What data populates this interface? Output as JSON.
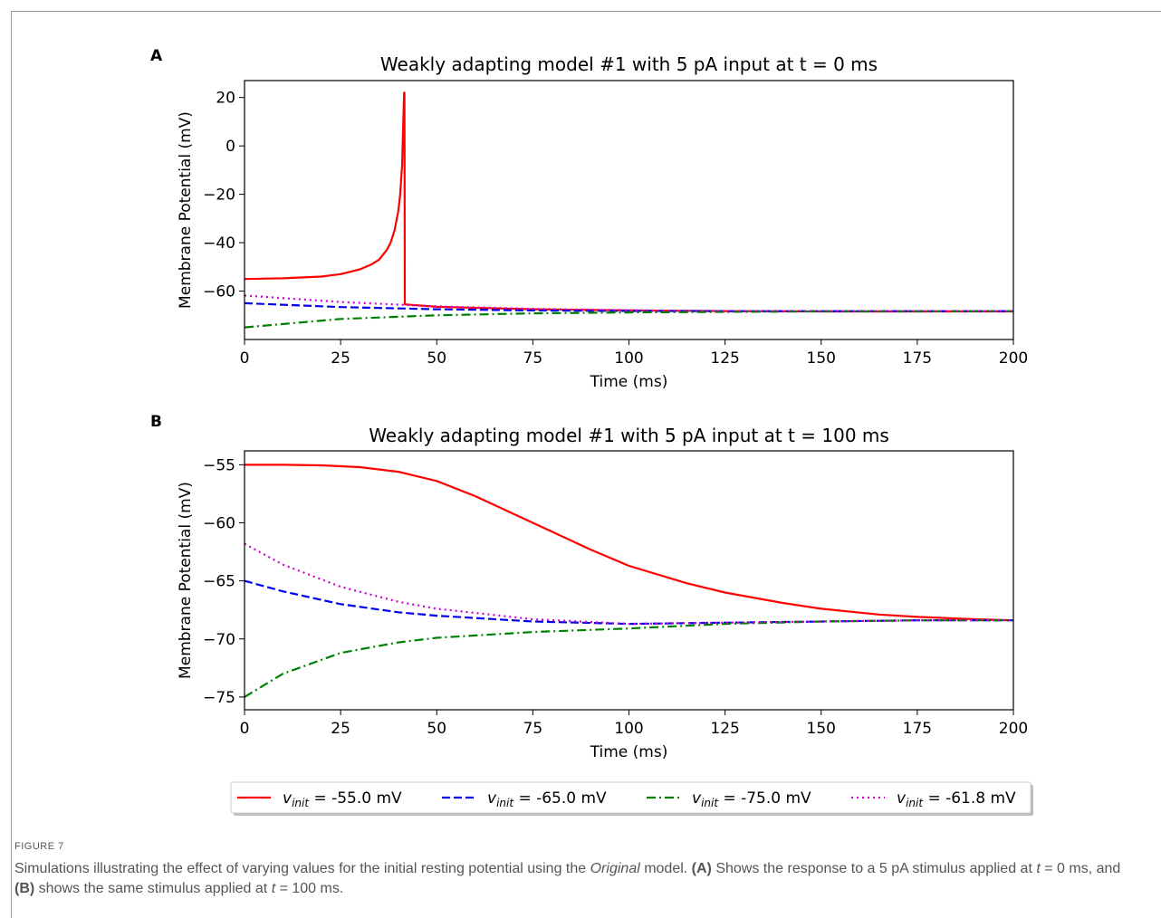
{
  "chart_data": [
    {
      "type": "line",
      "panel_label": "A",
      "title": "Weakly adapting model #1 with 5 pA input at t = 0 ms",
      "xlabel": "Time (ms)",
      "ylabel": "Membrane Potential (mV)",
      "xlim": [
        0,
        200
      ],
      "ylim": [
        -80,
        27
      ],
      "xticks": [
        0,
        25,
        50,
        75,
        100,
        125,
        150,
        175,
        200
      ],
      "yticks": [
        -60,
        -40,
        -20,
        0,
        20
      ],
      "grid": false,
      "series": [
        {
          "name": "-55.0 mV",
          "color": "#ff0000",
          "style": "solid",
          "x": [
            0,
            10,
            20,
            25,
            30,
            33,
            35,
            37,
            38,
            39,
            40,
            40.5,
            41,
            41.5,
            41.6,
            41.7,
            50,
            75,
            100,
            125,
            150,
            175,
            200
          ],
          "y": [
            -55,
            -54.7,
            -54,
            -53,
            -51,
            -49,
            -47,
            -43,
            -40,
            -35,
            -27,
            -20,
            -8,
            22,
            22,
            -65.5,
            -66.5,
            -67.5,
            -68,
            -68.3,
            -68.4,
            -68.4,
            -68.4
          ]
        },
        {
          "name": "-65.0 mV",
          "color": "#0000ee",
          "style": "dashed",
          "x": [
            0,
            25,
            50,
            75,
            100,
            125,
            150,
            175,
            200
          ],
          "y": [
            -65,
            -66.6,
            -67.5,
            -68,
            -68.2,
            -68.3,
            -68.3,
            -68.3,
            -68.3
          ]
        },
        {
          "name": "-75.0 mV",
          "color": "#008000",
          "style": "dashdot",
          "x": [
            0,
            25,
            50,
            75,
            100,
            125,
            150,
            175,
            200
          ],
          "y": [
            -75,
            -71.5,
            -70,
            -69.2,
            -68.8,
            -68.6,
            -68.4,
            -68.4,
            -68.3
          ]
        },
        {
          "name": "-61.8 mV",
          "color": "#cc00cc",
          "style": "dotted",
          "x": [
            0,
            25,
            50,
            75,
            100,
            125,
            150,
            175,
            200
          ],
          "y": [
            -61.8,
            -64.5,
            -66.3,
            -67.3,
            -67.9,
            -68.2,
            -68.3,
            -68.3,
            -68.3
          ]
        }
      ]
    },
    {
      "type": "line",
      "panel_label": "B",
      "title": "Weakly adapting model #1 with 5 pA input at t = 100 ms",
      "xlabel": "Time (ms)",
      "ylabel": "Membrane Potential (mV)",
      "xlim": [
        0,
        200
      ],
      "ylim": [
        -76.1,
        -53.8
      ],
      "xticks": [
        0,
        25,
        50,
        75,
        100,
        125,
        150,
        175,
        200
      ],
      "yticks": [
        -75,
        -70,
        -65,
        -60,
        -55
      ],
      "grid": false,
      "series": [
        {
          "name": "-55.0 mV",
          "color": "#ff0000",
          "style": "solid",
          "x": [
            0,
            10,
            20,
            30,
            40,
            50,
            60,
            75,
            90,
            100,
            115,
            125,
            140,
            150,
            165,
            175,
            190,
            200
          ],
          "y": [
            -55,
            -55,
            -55.05,
            -55.2,
            -55.6,
            -56.4,
            -57.7,
            -60,
            -62.3,
            -63.7,
            -65.2,
            -66,
            -66.9,
            -67.4,
            -67.9,
            -68.1,
            -68.3,
            -68.4
          ]
        },
        {
          "name": "-65.0 mV",
          "color": "#0000ee",
          "style": "dashed",
          "x": [
            0,
            10,
            25,
            40,
            50,
            75,
            100,
            125,
            150,
            175,
            200
          ],
          "y": [
            -65,
            -65.9,
            -67,
            -67.7,
            -68,
            -68.5,
            -68.7,
            -68.6,
            -68.5,
            -68.4,
            -68.4
          ]
        },
        {
          "name": "-75.0 mV",
          "color": "#008000",
          "style": "dashdot",
          "x": [
            0,
            10,
            25,
            40,
            50,
            75,
            100,
            125,
            150,
            175,
            200
          ],
          "y": [
            -75,
            -73,
            -71.2,
            -70.3,
            -69.9,
            -69.4,
            -69.1,
            -68.7,
            -68.5,
            -68.4,
            -68.4
          ]
        },
        {
          "name": "-61.8 mV",
          "color": "#cc00cc",
          "style": "dotted",
          "x": [
            0,
            10,
            25,
            40,
            50,
            75,
            100,
            125,
            150,
            175,
            200
          ],
          "y": [
            -61.8,
            -63.6,
            -65.5,
            -66.8,
            -67.4,
            -68.3,
            -68.7,
            -68.6,
            -68.5,
            -68.4,
            -68.4
          ]
        }
      ]
    }
  ],
  "legend": {
    "placement": "bottom-center",
    "prefix": "v",
    "subscript": "init",
    "equals": " = ",
    "entries": [
      "-55.0 mV",
      "-65.0 mV",
      "-75.0 mV",
      "-61.8 mV"
    ]
  },
  "caption": {
    "label": "FIGURE 7",
    "text_1": "Simulations illustrating the effect of varying values for the initial resting potential using the ",
    "text_italic": "Original",
    "text_2": " model. ",
    "bold_a": "(A)",
    "text_3": " Shows the response to a 5 pA stimulus applied at ",
    "t1": "t",
    "text_4": " = 0 ms, and ",
    "bold_b": "(B)",
    "text_5": " shows the same stimulus applied at ",
    "t2": "t",
    "text_6": " = 100 ms."
  }
}
